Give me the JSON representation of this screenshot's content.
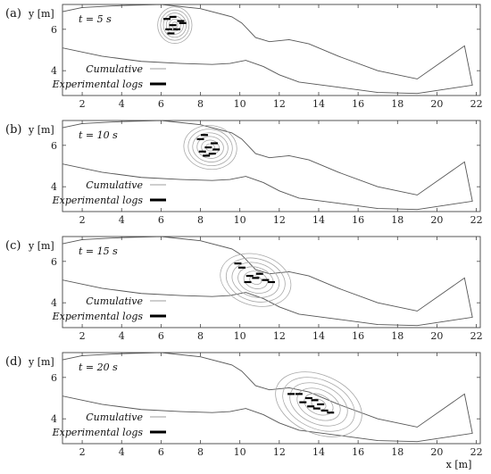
{
  "chart_data": [
    {
      "type": "line",
      "panel_label": "(a)",
      "time_label": "t = 5 s",
      "ylabel": "y [m]",
      "xlabel": "",
      "xlim": [
        1.0,
        22.2
      ],
      "ylim": [
        2.8,
        7.2
      ],
      "xticks": [
        "2",
        "4",
        "6",
        "8",
        "10",
        "12",
        "14",
        "16",
        "18",
        "20",
        "22"
      ],
      "yticks": [
        "4",
        "6"
      ],
      "legend": [
        {
          "label": "Cumulative",
          "color": "#b0b0b0"
        },
        {
          "label": "Experimental logs",
          "color": "#000000"
        }
      ],
      "density_center": [
        6.7,
        6.2
      ],
      "logs": [
        [
          6.3,
          6.5
        ],
        [
          6.6,
          6.6
        ],
        [
          7.0,
          6.4
        ],
        [
          6.6,
          6.2
        ],
        [
          6.4,
          6.0
        ],
        [
          6.8,
          6.0
        ],
        [
          6.5,
          5.8
        ],
        [
          7.1,
          6.3
        ]
      ]
    },
    {
      "type": "line",
      "panel_label": "(b)",
      "time_label": "t = 10 s",
      "ylabel": "y [m]",
      "xlabel": "",
      "xlim": [
        1.0,
        22.2
      ],
      "ylim": [
        2.8,
        7.2
      ],
      "xticks": [
        "2",
        "4",
        "6",
        "8",
        "10",
        "12",
        "14",
        "16",
        "18",
        "20",
        "22"
      ],
      "yticks": [
        "4",
        "6"
      ],
      "legend": [
        {
          "label": "Cumulative",
          "color": "#b0b0b0"
        },
        {
          "label": "Experimental logs",
          "color": "#000000"
        }
      ],
      "density_center": [
        8.5,
        5.9
      ],
      "logs": [
        [
          8.2,
          6.5
        ],
        [
          8.0,
          6.3
        ],
        [
          8.7,
          6.1
        ],
        [
          8.4,
          5.9
        ],
        [
          8.1,
          5.7
        ],
        [
          8.6,
          5.6
        ],
        [
          8.3,
          5.5
        ],
        [
          8.8,
          5.8
        ]
      ]
    },
    {
      "type": "line",
      "panel_label": "(c)",
      "time_label": "t = 15 s",
      "ylabel": "y [m]",
      "xlabel": "",
      "xlim": [
        1.0,
        22.2
      ],
      "ylim": [
        2.8,
        7.2
      ],
      "xticks": [
        "2",
        "4",
        "6",
        "8",
        "10",
        "12",
        "14",
        "16",
        "18",
        "20",
        "22"
      ],
      "yticks": [
        "4",
        "6"
      ],
      "legend": [
        {
          "label": "Cumulative",
          "color": "#b0b0b0"
        },
        {
          "label": "Experimental logs",
          "color": "#000000"
        }
      ],
      "density_center": [
        10.8,
        5.1
      ],
      "logs": [
        [
          9.9,
          5.9
        ],
        [
          10.1,
          5.7
        ],
        [
          10.5,
          5.3
        ],
        [
          10.8,
          5.2
        ],
        [
          11.0,
          5.4
        ],
        [
          11.3,
          5.1
        ],
        [
          10.4,
          5.0
        ],
        [
          11.6,
          5.0
        ]
      ]
    },
    {
      "type": "line",
      "panel_label": "(d)",
      "time_label": "t = 20 s",
      "ylabel": "y [m]",
      "xlabel": "x [m]",
      "xlim": [
        1.0,
        22.2
      ],
      "ylim": [
        2.8,
        7.2
      ],
      "xticks": [
        "2",
        "4",
        "6",
        "8",
        "10",
        "12",
        "14",
        "16",
        "18",
        "20",
        "22"
      ],
      "yticks": [
        "4",
        "6"
      ],
      "legend": [
        {
          "label": "Cumulative",
          "color": "#b0b0b0"
        },
        {
          "label": "Experimental logs",
          "color": "#000000"
        }
      ],
      "density_center": [
        14.0,
        4.7
      ],
      "logs": [
        [
          12.6,
          5.2
        ],
        [
          13.0,
          5.2
        ],
        [
          13.5,
          5.0
        ],
        [
          13.8,
          4.9
        ],
        [
          14.1,
          4.7
        ],
        [
          13.6,
          4.6
        ],
        [
          14.3,
          4.4
        ],
        [
          14.6,
          4.3
        ],
        [
          13.2,
          4.8
        ],
        [
          13.9,
          4.5
        ]
      ]
    }
  ]
}
